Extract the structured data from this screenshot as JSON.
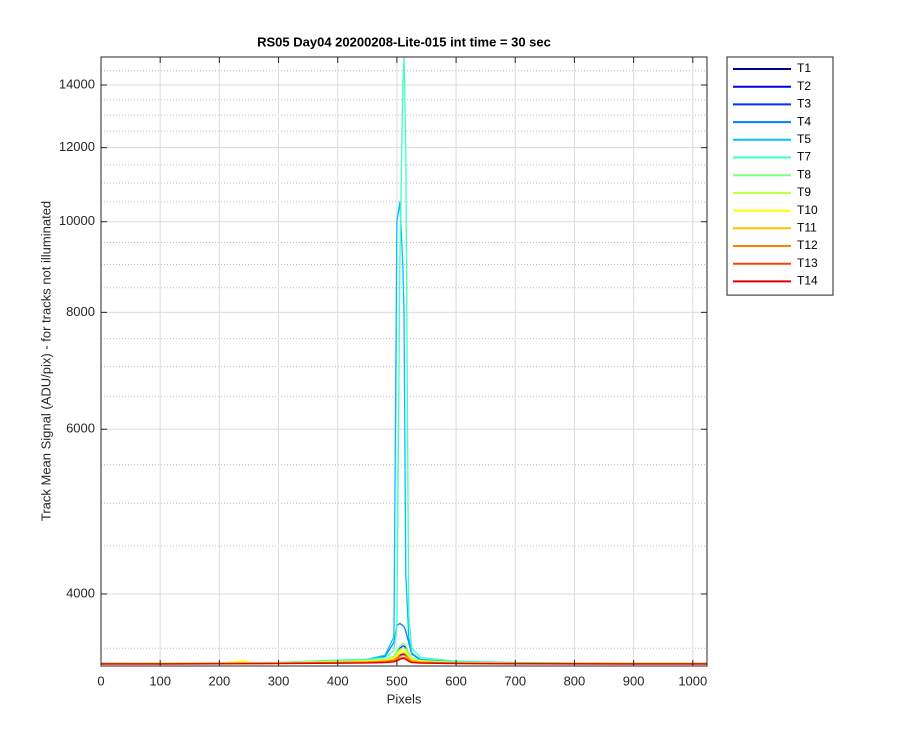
{
  "chart_data": {
    "type": "line",
    "title": "RS05 Day04 20200208-Lite-015 int time = 30 sec",
    "xlabel": "Pixels",
    "ylabel": "Track Mean Signal (ADU/pix) - for tracks not illuminated",
    "xlim": [
      0,
      1024
    ],
    "xticks": [
      0,
      100,
      200,
      300,
      400,
      500,
      600,
      700,
      800,
      900,
      1000
    ],
    "ylim": [
      3350,
      15000
    ],
    "yticks": [
      4000,
      6000,
      8000,
      10000,
      12000,
      14000
    ],
    "yminorticks": [
      3500,
      4500,
      5000,
      5500,
      6500,
      7000,
      7500,
      8500,
      9000,
      9500,
      10500,
      11000,
      11500,
      12500,
      13000,
      13500,
      14500,
      15000
    ],
    "yscale": "log",
    "grid": true,
    "legend": "outside-right",
    "x": [
      0,
      100,
      200,
      245,
      250,
      300,
      400,
      450,
      480,
      495,
      500,
      505,
      510,
      512,
      515,
      520,
      525,
      540,
      600,
      700,
      800,
      900,
      1024
    ],
    "series": [
      {
        "name": "T1",
        "color": "#00008f",
        "values": [
          3370,
          3370,
          3372,
          3372,
          3372,
          3374,
          3380,
          3382,
          3385,
          3390,
          3400,
          3410,
          3420,
          3420,
          3410,
          3395,
          3385,
          3380,
          3376,
          3373,
          3372,
          3371,
          3370
        ]
      },
      {
        "name": "T2",
        "color": "#0000df",
        "values": [
          3370,
          3370,
          3372,
          3372,
          3372,
          3374,
          3382,
          3385,
          3390,
          3400,
          3420,
          3440,
          3450,
          3450,
          3440,
          3410,
          3390,
          3382,
          3377,
          3373,
          3372,
          3371,
          3370
        ]
      },
      {
        "name": "T3",
        "color": "#0030ff",
        "values": [
          3370,
          3370,
          3373,
          3373,
          3373,
          3375,
          3385,
          3390,
          3400,
          3420,
          3460,
          3500,
          3520,
          3520,
          3500,
          3440,
          3400,
          3385,
          3378,
          3374,
          3372,
          3371,
          3370
        ]
      },
      {
        "name": "T4",
        "color": "#0080ff",
        "values": [
          3370,
          3371,
          3374,
          3374,
          3374,
          3377,
          3395,
          3400,
          3430,
          3550,
          3700,
          3720,
          3700,
          3690,
          3650,
          3550,
          3450,
          3400,
          3382,
          3375,
          3373,
          3371,
          3370
        ]
      },
      {
        "name": "T5",
        "color": "#00c0ff",
        "values": [
          3370,
          3371,
          3374,
          3374,
          3374,
          3378,
          3398,
          3405,
          3440,
          3600,
          10000,
          10500,
          9000,
          8000,
          4200,
          3600,
          3460,
          3405,
          3384,
          3376,
          3373,
          3371,
          3370
        ]
      },
      {
        "name": "T7",
        "color": "#40ffc0",
        "values": [
          3370,
          3371,
          3375,
          3376,
          3376,
          3380,
          3400,
          3405,
          3420,
          3480,
          3700,
          9000,
          14000,
          15000,
          12000,
          3800,
          3500,
          3420,
          3390,
          3380,
          3375,
          3372,
          3370
        ]
      },
      {
        "name": "T8",
        "color": "#80ff80",
        "values": [
          3370,
          3371,
          3374,
          3375,
          3375,
          3377,
          3390,
          3395,
          3405,
          3430,
          3480,
          3520,
          3540,
          3540,
          3520,
          3460,
          3420,
          3395,
          3380,
          3375,
          3373,
          3371,
          3370
        ]
      },
      {
        "name": "T9",
        "color": "#c0ff40",
        "values": [
          3370,
          3371,
          3374,
          3378,
          3378,
          3377,
          3388,
          3392,
          3400,
          3420,
          3460,
          3490,
          3500,
          3500,
          3490,
          3440,
          3410,
          3392,
          3379,
          3374,
          3372,
          3371,
          3370
        ]
      },
      {
        "name": "T10",
        "color": "#ffff00",
        "values": [
          3370,
          3371,
          3374,
          3392,
          3375,
          3376,
          3385,
          3390,
          3398,
          3415,
          3440,
          3470,
          3480,
          3480,
          3470,
          3430,
          3400,
          3390,
          3378,
          3374,
          3372,
          3371,
          3370
        ]
      },
      {
        "name": "T11",
        "color": "#ffc000",
        "values": [
          3370,
          3370,
          3373,
          3375,
          3374,
          3375,
          3382,
          3385,
          3392,
          3405,
          3425,
          3450,
          3460,
          3460,
          3450,
          3420,
          3395,
          3385,
          3376,
          3373,
          3372,
          3371,
          3370
        ]
      },
      {
        "name": "T12",
        "color": "#ff8000",
        "values": [
          3370,
          3370,
          3372,
          3373,
          3373,
          3374,
          3379,
          3382,
          3388,
          3398,
          3410,
          3430,
          3440,
          3440,
          3430,
          3405,
          3388,
          3380,
          3375,
          3372,
          3371,
          3370,
          3370
        ]
      },
      {
        "name": "T13",
        "color": "#ff4000",
        "values": [
          3368,
          3368,
          3370,
          3371,
          3371,
          3372,
          3376,
          3378,
          3383,
          3390,
          3400,
          3415,
          3420,
          3420,
          3412,
          3395,
          3382,
          3377,
          3372,
          3370,
          3369,
          3368,
          3368
        ]
      },
      {
        "name": "T14",
        "color": "#e00000",
        "values": [
          3366,
          3366,
          3368,
          3369,
          3369,
          3370,
          3373,
          3375,
          3378,
          3384,
          3392,
          3405,
          3412,
          3412,
          3405,
          3388,
          3378,
          3374,
          3370,
          3368,
          3367,
          3366,
          3366
        ]
      }
    ]
  }
}
